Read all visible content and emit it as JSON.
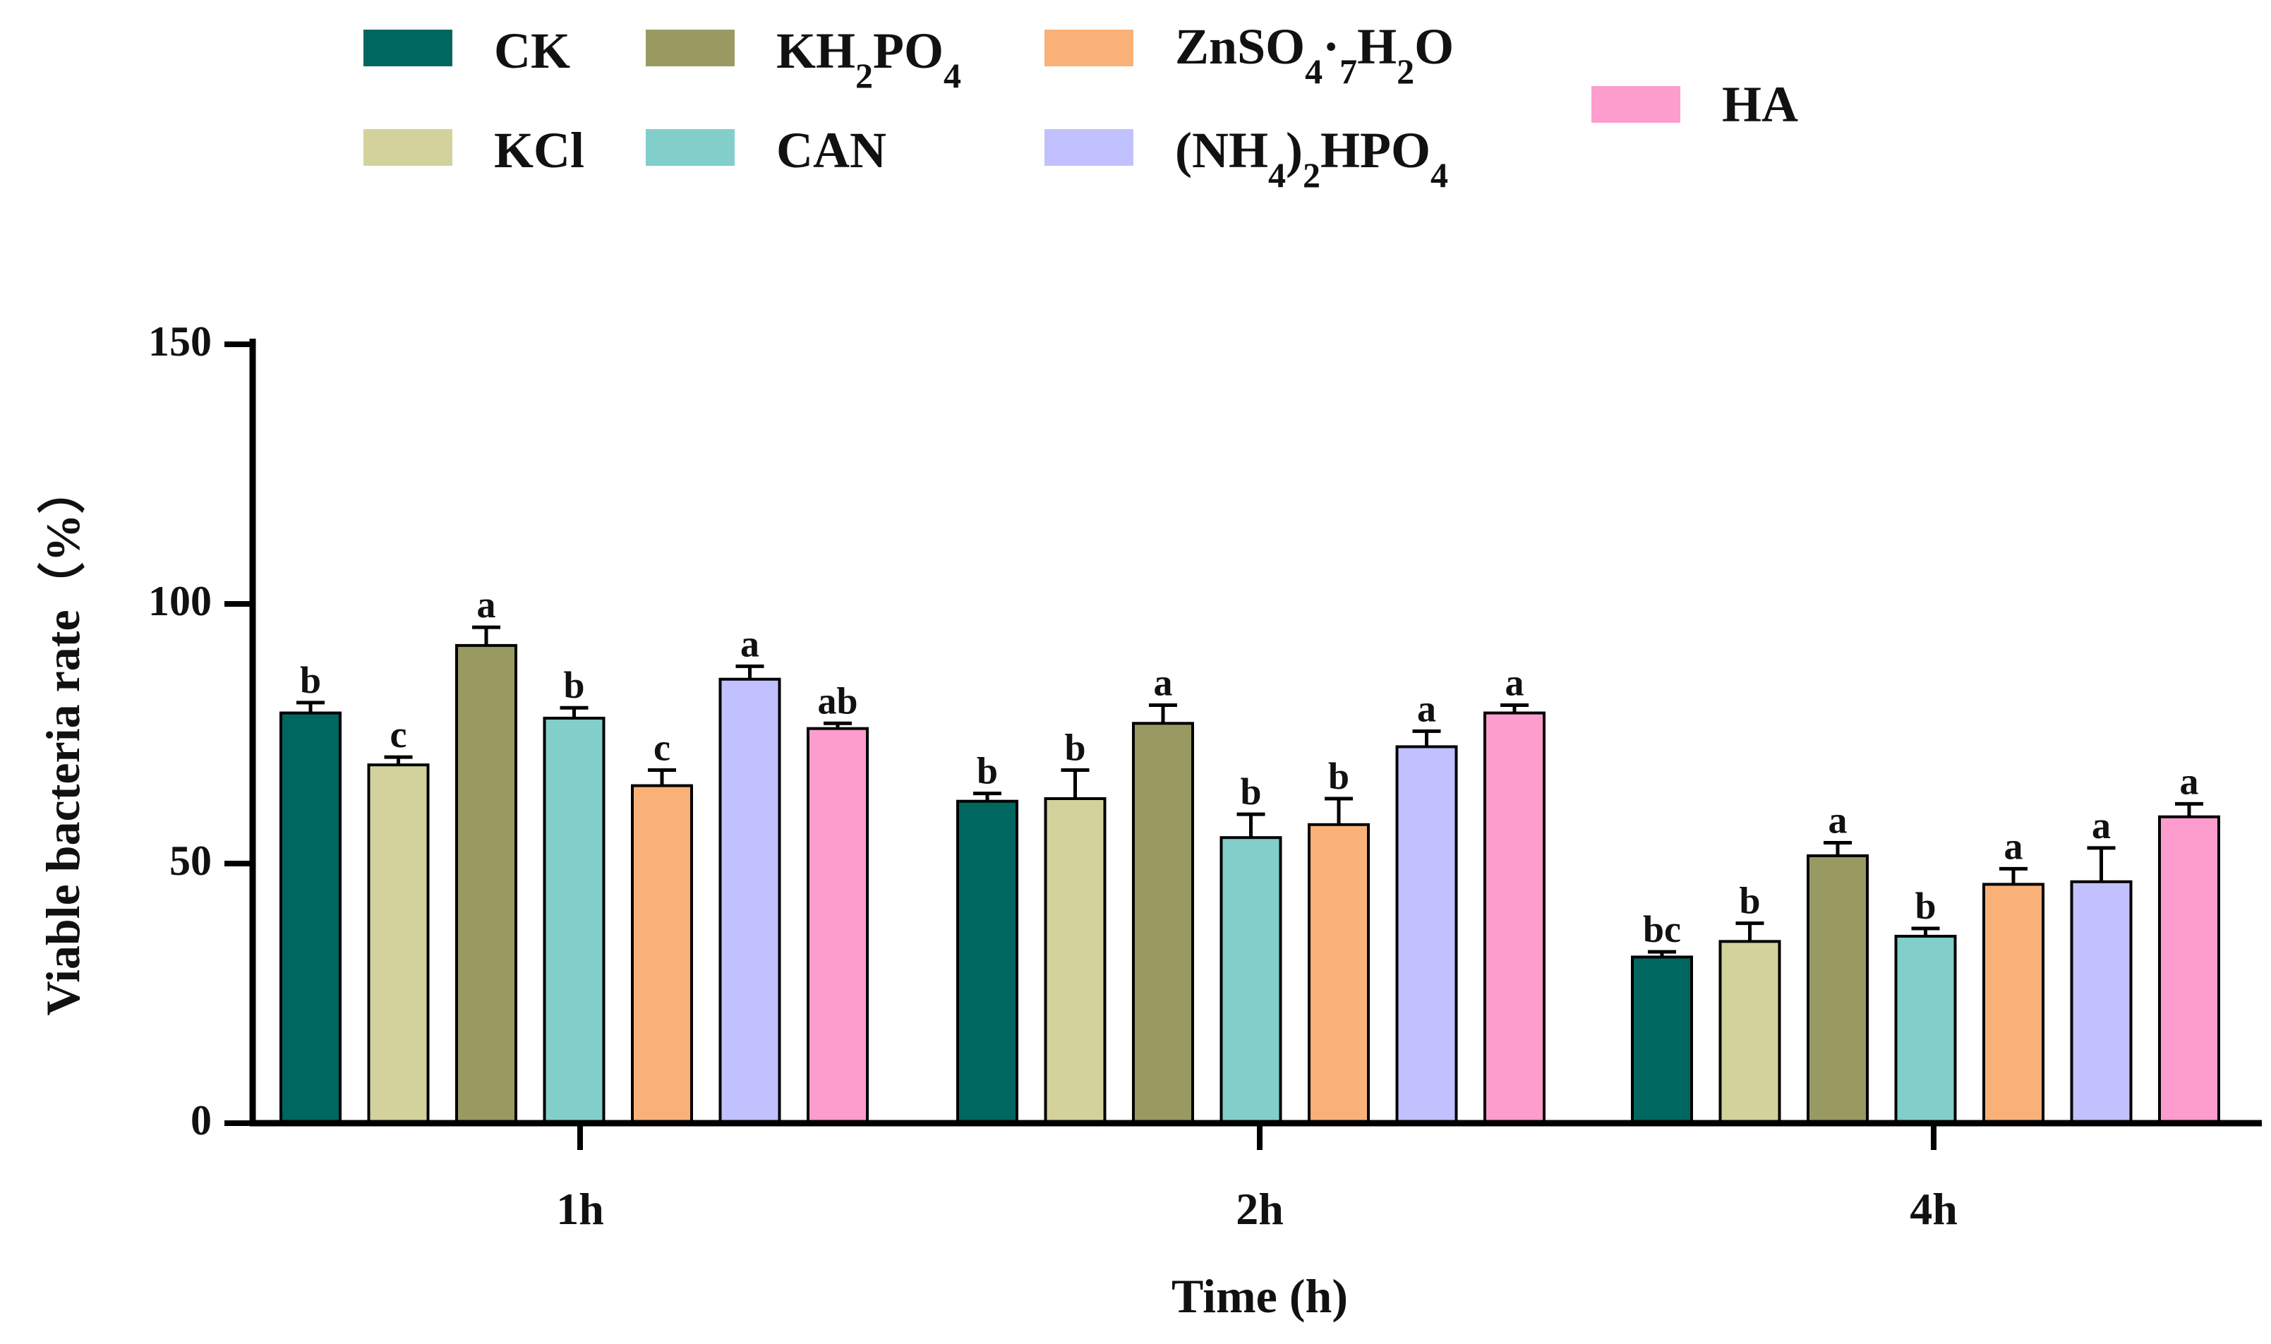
{
  "chart_data": {
    "type": "bar",
    "title": "",
    "xlabel": "Time (h)",
    "ylabel": "Viable bacteria rate（%）",
    "ylim": [
      0,
      150
    ],
    "yticks": [
      "0",
      "50",
      "100",
      "150"
    ],
    "categories": [
      "1h",
      "2h",
      "4h"
    ],
    "legend_position": "top",
    "series": [
      {
        "name": "CK",
        "color": "#006660",
        "values": [
          79,
          62,
          32
        ],
        "errors": [
          2,
          1.5,
          1
        ],
        "sig": [
          "b",
          "b",
          "bc"
        ]
      },
      {
        "name": "KCl",
        "color": "#D4D29C",
        "values": [
          69,
          62.5,
          35
        ],
        "errors": [
          1.5,
          5.5,
          3.5
        ],
        "sig": [
          "c",
          "b",
          "b"
        ]
      },
      {
        "name": "KH2PO4",
        "color": "#999A62",
        "values": [
          92,
          77,
          51.5
        ],
        "errors": [
          3.5,
          3.5,
          2.5
        ],
        "sig": [
          "a",
          "a",
          "a"
        ]
      },
      {
        "name": "CAN",
        "color": "#82CECB",
        "values": [
          78,
          55,
          36
        ],
        "errors": [
          2,
          4.5,
          1.5
        ],
        "sig": [
          "b",
          "b",
          "b"
        ]
      },
      {
        "name": "ZnSO4·7H2O",
        "color": "#F9B178",
        "values": [
          65,
          57.5,
          46
        ],
        "errors": [
          3,
          5,
          3
        ],
        "sig": [
          "c",
          "b",
          "a"
        ]
      },
      {
        "name": "(NH4)2HPO4",
        "color": "#C2C1FF",
        "values": [
          85.5,
          72.5,
          46.5
        ],
        "errors": [
          2.5,
          3,
          6.5
        ],
        "sig": [
          "a",
          "a",
          "a"
        ]
      },
      {
        "name": "HA",
        "color": "#FD9DCD",
        "values": [
          76,
          79,
          59
        ],
        "errors": [
          1,
          1.5,
          2.5
        ],
        "sig": [
          "ab",
          "a",
          "a"
        ]
      }
    ]
  }
}
